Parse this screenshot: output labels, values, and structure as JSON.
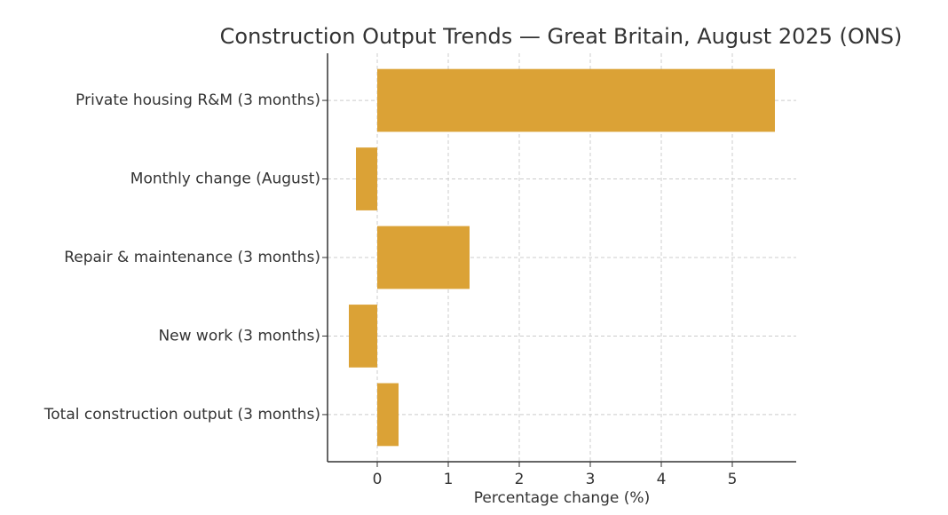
{
  "chart_data": {
    "type": "barh",
    "title": "Construction Output Trends — Great Britain, August 2025 (ONS)",
    "xlabel": "Percentage change (%)",
    "categories": [
      "Private housing R&M (3 months)",
      "Monthly change (August)",
      "Repair & maintenance (3 months)",
      "New work (3 months)",
      "Total construction output (3 months)"
    ],
    "values": [
      5.6,
      -0.3,
      1.3,
      -0.4,
      0.3
    ],
    "color": "#dba236",
    "xlim": [
      -0.7,
      5.9
    ],
    "xticks": [
      0,
      1,
      2,
      3,
      4,
      5
    ],
    "grid": true
  }
}
